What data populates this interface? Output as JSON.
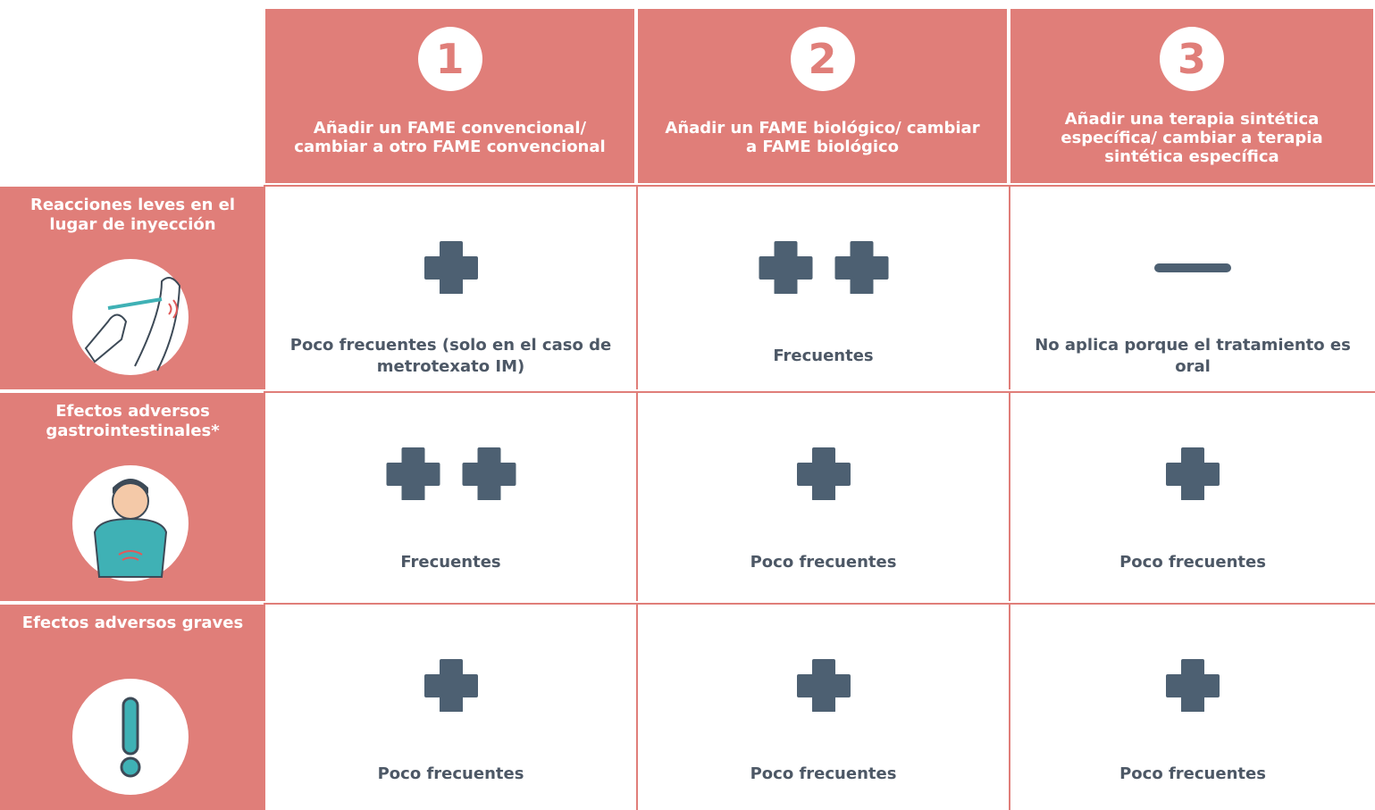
{
  "header": {
    "columns": [
      {
        "number": "1",
        "label": "Añadir un FAME convencional/ cambiar a otro FAME convencional"
      },
      {
        "number": "2",
        "label": "Añadir un FAME biológico/ cambiar a FAME biológico"
      },
      {
        "number": "3",
        "label": "Añadir una terapia sintética específica/ cambiar a terapia sintética específica"
      }
    ]
  },
  "rows": [
    {
      "label": "Reacciones leves en el lugar de inyección",
      "cells": [
        {
          "plus_count": 1,
          "text": "Poco frecuentes (solo en el caso de metrotexato IM)"
        },
        {
          "plus_count": 2,
          "text": "Frecuentes"
        },
        {
          "plus_count": 0,
          "text": "No aplica porque el tratamiento es oral"
        }
      ]
    },
    {
      "label": "Efectos adversos gastrointestinales*",
      "cells": [
        {
          "plus_count": 2,
          "text": "Frecuentes"
        },
        {
          "plus_count": 1,
          "text": "Poco frecuentes"
        },
        {
          "plus_count": 1,
          "text": "Poco frecuentes"
        }
      ]
    },
    {
      "label": "Efectos adversos graves",
      "cells": [
        {
          "plus_count": 1,
          "text": "Poco frecuentes"
        },
        {
          "plus_count": 1,
          "text": "Poco frecuentes"
        },
        {
          "plus_count": 1,
          "text": "Poco frecuentes"
        }
      ]
    }
  ]
}
